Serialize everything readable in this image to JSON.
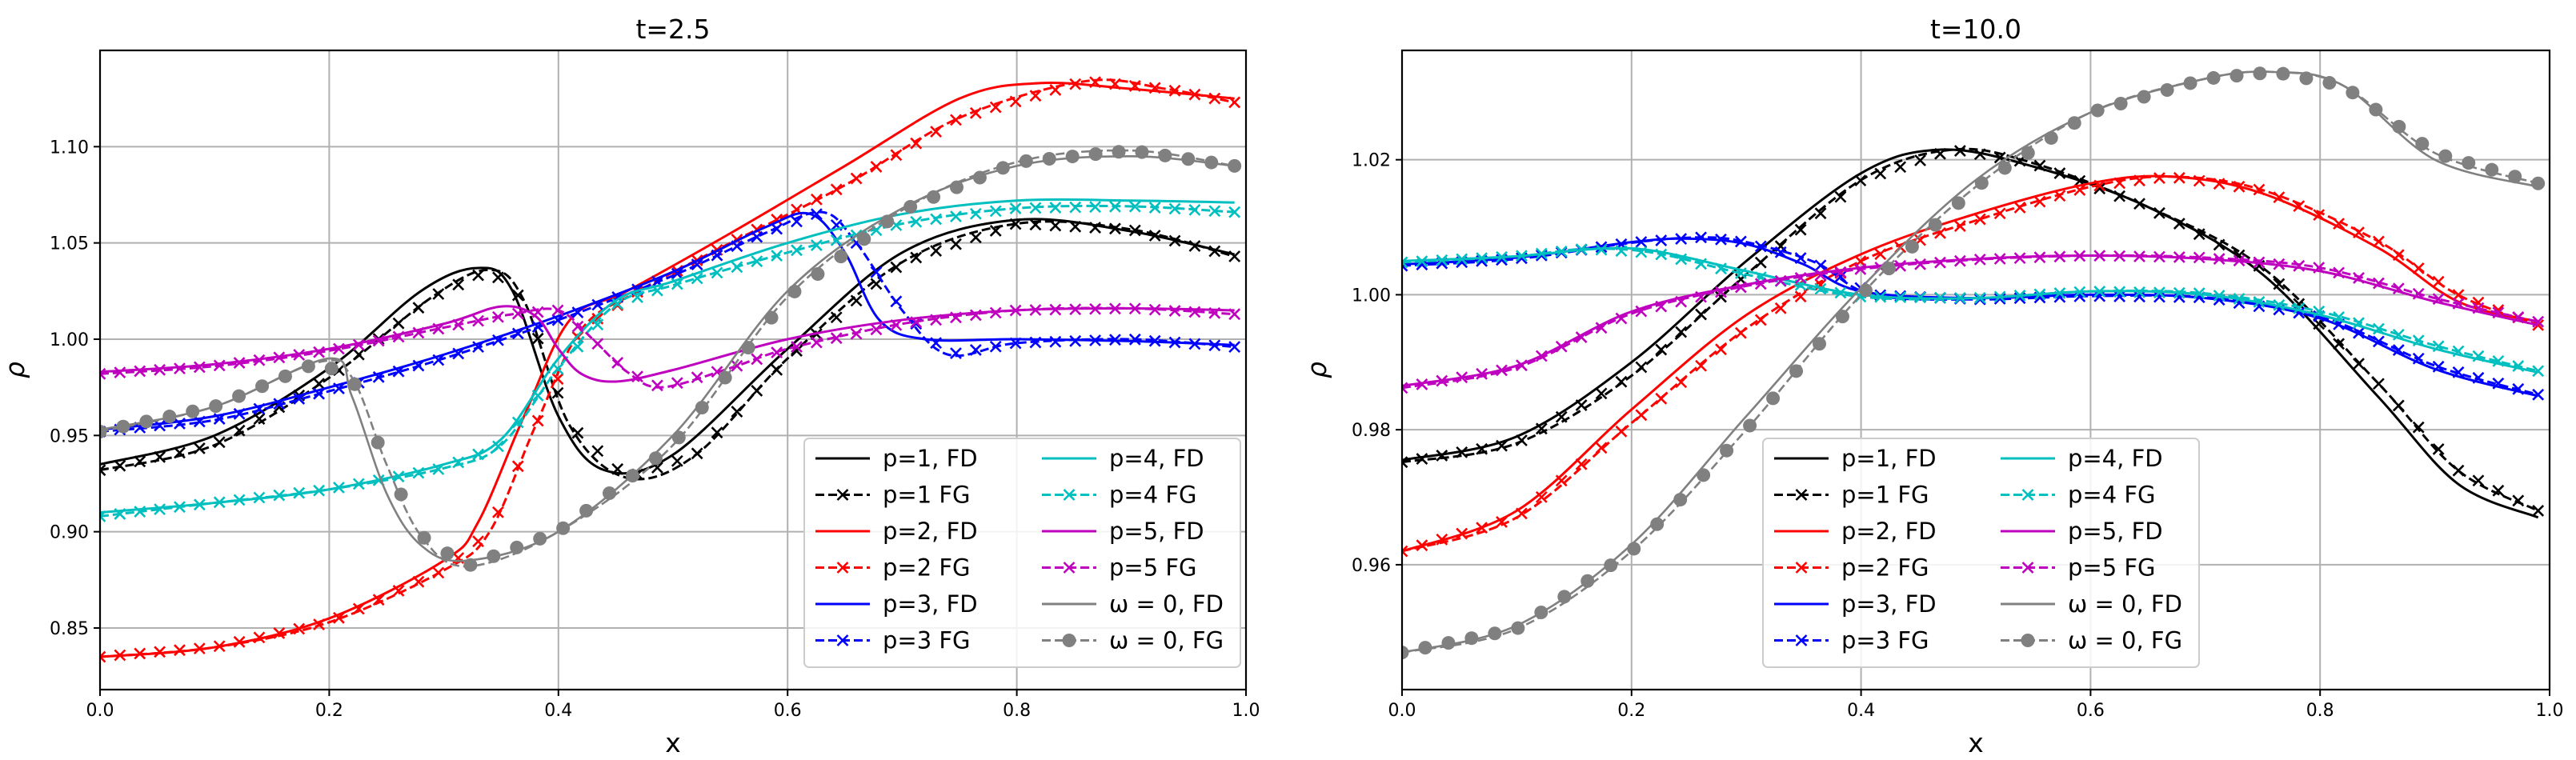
{
  "chart_data": [
    {
      "type": "line",
      "title": "t=2.5",
      "xlabel": "x",
      "ylabel": "ρ",
      "xlim": [
        0.0,
        1.0
      ],
      "ylim": [
        0.818,
        1.15
      ],
      "xticks": [
        "0.0",
        "0.2",
        "0.4",
        "0.6",
        "0.8",
        "1.0"
      ],
      "yticks": [
        "0.85",
        "0.90",
        "0.95",
        "1.00",
        "1.05",
        "1.10"
      ],
      "grid": true,
      "legend_position": "lower-right",
      "legend_columns": 2,
      "series": [
        {
          "name": "p=1, FD",
          "color": "#000000",
          "style": "solid",
          "marker": "none",
          "x": [
            0,
            0.1,
            0.2,
            0.28,
            0.33,
            0.36,
            0.4,
            0.44,
            0.5,
            0.6,
            0.7,
            0.8,
            0.9,
            0.99
          ],
          "y": [
            0.935,
            0.95,
            0.985,
            1.025,
            1.037,
            1.025,
            0.96,
            0.932,
            0.94,
            0.995,
            1.045,
            1.062,
            1.056,
            1.044
          ]
        },
        {
          "name": "p=1 FG",
          "color": "#000000",
          "style": "dashed",
          "marker": "x",
          "x": [
            0,
            0.1,
            0.2,
            0.29,
            0.34,
            0.37,
            0.41,
            0.46,
            0.52,
            0.6,
            0.7,
            0.8,
            0.9,
            0.99
          ],
          "y": [
            0.932,
            0.945,
            0.98,
            1.022,
            1.036,
            1.02,
            0.955,
            0.928,
            0.94,
            0.99,
            1.04,
            1.06,
            1.057,
            1.043
          ]
        },
        {
          "name": "p=2, FD",
          "color": "#ff0000",
          "style": "solid",
          "marker": "none",
          "x": [
            0,
            0.1,
            0.2,
            0.3,
            0.33,
            0.37,
            0.41,
            0.46,
            0.55,
            0.65,
            0.75,
            0.82,
            0.9,
            0.99
          ],
          "y": [
            0.835,
            0.84,
            0.855,
            0.885,
            0.905,
            0.96,
            1.01,
            1.025,
            1.055,
            1.09,
            1.125,
            1.133,
            1.13,
            1.125
          ]
        },
        {
          "name": "p=2 FG",
          "color": "#ff0000",
          "style": "dashed",
          "marker": "x",
          "x": [
            0,
            0.1,
            0.2,
            0.3,
            0.34,
            0.38,
            0.42,
            0.47,
            0.55,
            0.65,
            0.75,
            0.86,
            0.93,
            0.99
          ],
          "y": [
            0.835,
            0.84,
            0.853,
            0.88,
            0.9,
            0.955,
            1.005,
            1.025,
            1.05,
            1.08,
            1.115,
            1.134,
            1.13,
            1.123
          ]
        },
        {
          "name": "p=3, FD",
          "color": "#0000ff",
          "style": "solid",
          "marker": "none",
          "x": [
            0,
            0.1,
            0.2,
            0.3,
            0.4,
            0.5,
            0.58,
            0.62,
            0.65,
            0.68,
            0.72,
            0.8,
            0.9,
            0.99
          ],
          "y": [
            0.953,
            0.96,
            0.975,
            0.992,
            1.012,
            1.035,
            1.058,
            1.065,
            1.045,
            1.01,
            1.0,
            1.0,
            0.999,
            0.997
          ]
        },
        {
          "name": "p=3 FG",
          "color": "#0000ff",
          "style": "dashed",
          "marker": "x",
          "x": [
            0,
            0.1,
            0.2,
            0.3,
            0.4,
            0.5,
            0.58,
            0.63,
            0.66,
            0.7,
            0.74,
            0.8,
            0.9,
            0.99
          ],
          "y": [
            0.952,
            0.958,
            0.973,
            0.99,
            1.01,
            1.033,
            1.055,
            1.066,
            1.05,
            1.015,
            0.992,
            0.998,
            1.0,
            0.996
          ]
        },
        {
          "name": "p=4, FD",
          "color": "#00bfbf",
          "style": "solid",
          "marker": "none",
          "x": [
            0,
            0.1,
            0.2,
            0.3,
            0.35,
            0.4,
            0.45,
            0.5,
            0.6,
            0.7,
            0.8,
            0.9,
            0.99
          ],
          "y": [
            0.91,
            0.915,
            0.922,
            0.935,
            0.948,
            0.99,
            1.02,
            1.03,
            1.05,
            1.065,
            1.072,
            1.072,
            1.071
          ]
        },
        {
          "name": "p=4 FG",
          "color": "#00bfbf",
          "style": "dashed",
          "marker": "x",
          "x": [
            0,
            0.1,
            0.2,
            0.3,
            0.35,
            0.4,
            0.45,
            0.5,
            0.6,
            0.7,
            0.8,
            0.9,
            0.99
          ],
          "y": [
            0.908,
            0.915,
            0.922,
            0.933,
            0.945,
            0.985,
            1.018,
            1.028,
            1.045,
            1.06,
            1.068,
            1.069,
            1.066
          ]
        },
        {
          "name": "p=5, FD",
          "color": "#bf00bf",
          "style": "solid",
          "marker": "none",
          "x": [
            0,
            0.1,
            0.2,
            0.3,
            0.35,
            0.38,
            0.4,
            0.42,
            0.45,
            0.5,
            0.6,
            0.7,
            0.8,
            0.9,
            0.99
          ],
          "y": [
            0.983,
            0.987,
            0.995,
            1.008,
            1.017,
            1.012,
            0.995,
            0.982,
            0.978,
            0.984,
            1.0,
            1.01,
            1.015,
            1.016,
            1.015
          ]
        },
        {
          "name": "p=5 FG",
          "color": "#bf00bf",
          "style": "dashed",
          "marker": "x",
          "x": [
            0,
            0.1,
            0.2,
            0.3,
            0.36,
            0.4,
            0.43,
            0.46,
            0.49,
            0.55,
            0.6,
            0.7,
            0.8,
            0.9,
            0.99
          ],
          "y": [
            0.982,
            0.986,
            0.994,
            1.006,
            1.013,
            1.015,
            1.0,
            0.983,
            0.975,
            0.985,
            0.995,
            1.008,
            1.015,
            1.016,
            1.013
          ]
        },
        {
          "name": "ω = 0, FD",
          "color": "#808080",
          "style": "solid",
          "marker": "none",
          "x": [
            0,
            0.1,
            0.2,
            0.22,
            0.25,
            0.28,
            0.32,
            0.4,
            0.5,
            0.6,
            0.7,
            0.8,
            0.9,
            0.99
          ],
          "y": [
            0.953,
            0.965,
            0.99,
            0.97,
            0.92,
            0.893,
            0.885,
            0.9,
            0.95,
            1.025,
            1.068,
            1.09,
            1.095,
            1.09
          ]
        },
        {
          "name": "ω = 0, FG",
          "color": "#808080",
          "style": "dashed",
          "marker": "o",
          "x": [
            0,
            0.1,
            0.19,
            0.22,
            0.25,
            0.28,
            0.32,
            0.4,
            0.5,
            0.6,
            0.7,
            0.8,
            0.9,
            0.99
          ],
          "y": [
            0.952,
            0.965,
            0.988,
            0.98,
            0.935,
            0.898,
            0.882,
            0.9,
            0.945,
            1.022,
            1.067,
            1.092,
            1.098,
            1.09
          ]
        }
      ],
      "legend_labels": [
        "p=1, FD",
        "p=1 FG",
        "p=2, FD",
        "p=2 FG",
        "p=3, FD",
        "p=3 FG",
        "p=4, FD",
        "p=4 FG",
        "p=5, FD",
        "p=5 FG",
        "ω = 0, FD",
        "ω = 0, FG"
      ]
    },
    {
      "type": "line",
      "title": "t=10.0",
      "xlabel": "x",
      "ylabel": "ρ",
      "xlim": [
        0.0,
        1.0
      ],
      "ylim": [
        0.9415,
        1.0362
      ],
      "xticks": [
        "0.0",
        "0.2",
        "0.4",
        "0.6",
        "0.8",
        "1.0"
      ],
      "yticks": [
        "0.96",
        "0.98",
        "1.00",
        "1.02"
      ],
      "grid": true,
      "legend_position": "lower-center",
      "legend_columns": 2,
      "series": [
        {
          "name": "p=1, FD",
          "color": "#000000",
          "style": "solid",
          "marker": "none",
          "x": [
            0,
            0.1,
            0.2,
            0.3,
            0.4,
            0.47,
            0.55,
            0.65,
            0.75,
            0.85,
            0.92,
            0.99
          ],
          "y": [
            0.9755,
            0.979,
            0.99,
            1.005,
            1.018,
            1.0215,
            1.019,
            1.013,
            1.003,
            0.985,
            0.972,
            0.967
          ]
        },
        {
          "name": "p=1 FG",
          "color": "#000000",
          "style": "dashed",
          "marker": "x",
          "x": [
            0,
            0.1,
            0.2,
            0.3,
            0.4,
            0.48,
            0.55,
            0.65,
            0.75,
            0.85,
            0.92,
            0.99
          ],
          "y": [
            0.9752,
            0.978,
            0.988,
            1.003,
            1.017,
            1.0215,
            1.0195,
            1.013,
            1.004,
            0.987,
            0.974,
            0.968
          ]
        },
        {
          "name": "p=2, FD",
          "color": "#ff0000",
          "style": "solid",
          "marker": "none",
          "x": [
            0,
            0.1,
            0.2,
            0.3,
            0.4,
            0.5,
            0.6,
            0.67,
            0.75,
            0.85,
            0.92,
            0.99
          ],
          "y": [
            0.962,
            0.968,
            0.983,
            0.997,
            1.006,
            1.012,
            1.0165,
            1.0175,
            1.015,
            1.007,
            0.999,
            0.996
          ]
        },
        {
          "name": "p=2 FG",
          "color": "#ff0000",
          "style": "dashed",
          "marker": "x",
          "x": [
            0,
            0.1,
            0.2,
            0.3,
            0.4,
            0.5,
            0.6,
            0.67,
            0.75,
            0.85,
            0.92,
            0.99
          ],
          "y": [
            0.962,
            0.967,
            0.981,
            0.995,
            1.005,
            1.011,
            1.016,
            1.0175,
            1.0155,
            1.008,
            1.0,
            0.9955
          ]
        },
        {
          "name": "p=3, FD",
          "color": "#0000ff",
          "style": "solid",
          "marker": "none",
          "x": [
            0,
            0.1,
            0.2,
            0.25,
            0.3,
            0.35,
            0.4,
            0.5,
            0.6,
            0.7,
            0.8,
            0.9,
            0.99
          ],
          "y": [
            1.0045,
            1.0055,
            1.0078,
            1.0083,
            1.0075,
            1.0045,
            1.0005,
            0.9995,
            1.0,
            0.9995,
            0.9965,
            0.989,
            0.985
          ]
        },
        {
          "name": "p=3 FG",
          "color": "#0000ff",
          "style": "dashed",
          "marker": "x",
          "x": [
            0,
            0.1,
            0.2,
            0.26,
            0.3,
            0.36,
            0.41,
            0.5,
            0.6,
            0.7,
            0.8,
            0.9,
            0.99
          ],
          "y": [
            1.0043,
            1.0053,
            1.0077,
            1.0085,
            1.0078,
            1.0048,
            1.0,
            0.9993,
            0.9998,
            0.9996,
            0.9968,
            0.9895,
            0.9852
          ]
        },
        {
          "name": "p=4, FD",
          "color": "#00bfbf",
          "style": "solid",
          "marker": "none",
          "x": [
            0,
            0.1,
            0.17,
            0.22,
            0.3,
            0.4,
            0.5,
            0.6,
            0.7,
            0.8,
            0.9,
            0.99
          ],
          "y": [
            1.005,
            1.0057,
            1.0068,
            1.0065,
            1.0035,
            1.0,
            0.9995,
            1.0005,
            1.0,
            0.997,
            0.992,
            0.9885
          ]
        },
        {
          "name": "p=4 FG",
          "color": "#00bfbf",
          "style": "dashed",
          "marker": "x",
          "x": [
            0,
            0.1,
            0.16,
            0.22,
            0.3,
            0.4,
            0.5,
            0.6,
            0.7,
            0.8,
            0.9,
            0.99
          ],
          "y": [
            1.0048,
            1.0057,
            1.0068,
            1.0062,
            1.003,
            0.9997,
            0.9995,
            1.0005,
            1.0002,
            0.9975,
            0.9925,
            0.9887
          ]
        },
        {
          "name": "p=5, FD",
          "color": "#bf00bf",
          "style": "solid",
          "marker": "none",
          "x": [
            0,
            0.1,
            0.2,
            0.3,
            0.4,
            0.5,
            0.6,
            0.7,
            0.8,
            0.9,
            0.99
          ],
          "y": [
            0.9865,
            0.9895,
            0.9975,
            1.0015,
            1.004,
            1.0053,
            1.0058,
            1.0053,
            1.0035,
            0.999,
            0.9955
          ]
        },
        {
          "name": "p=5 FG",
          "color": "#bf00bf",
          "style": "dashed",
          "marker": "x",
          "x": [
            0,
            0.1,
            0.2,
            0.3,
            0.4,
            0.5,
            0.6,
            0.7,
            0.8,
            0.9,
            0.99
          ],
          "y": [
            0.9862,
            0.9892,
            0.9972,
            1.0013,
            1.0038,
            1.0052,
            1.0058,
            1.0055,
            1.004,
            0.9995,
            0.996
          ]
        },
        {
          "name": "ω = 0, FD",
          "color": "#808080",
          "style": "solid",
          "marker": "none",
          "x": [
            0,
            0.1,
            0.2,
            0.3,
            0.4,
            0.5,
            0.6,
            0.7,
            0.76,
            0.82,
            0.9,
            0.99
          ],
          "y": [
            0.947,
            0.951,
            0.963,
            0.982,
            1.001,
            1.017,
            1.027,
            1.032,
            1.033,
            1.031,
            1.02,
            1.016
          ]
        },
        {
          "name": "ω = 0, FG",
          "color": "#808080",
          "style": "dashed",
          "marker": "o",
          "x": [
            0,
            0.1,
            0.2,
            0.3,
            0.4,
            0.5,
            0.6,
            0.7,
            0.76,
            0.82,
            0.9,
            0.99
          ],
          "y": [
            0.947,
            0.9505,
            0.962,
            0.98,
            1.0,
            1.016,
            1.027,
            1.032,
            1.033,
            1.031,
            1.021,
            1.0165
          ]
        }
      ],
      "legend_labels": [
        "p=1, FD",
        "p=1 FG",
        "p=2, FD",
        "p=2 FG",
        "p=3, FD",
        "p=3 FG",
        "p=4, FD",
        "p=4 FG",
        "p=5, FD",
        "p=5 FG",
        "ω = 0, FD",
        "ω = 0, FG"
      ]
    }
  ]
}
